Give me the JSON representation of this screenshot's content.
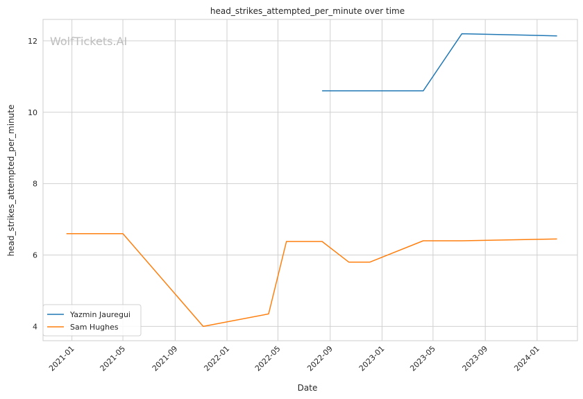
{
  "watermark": "WolfTickets.AI",
  "chart_data": {
    "type": "line",
    "title": "head_strikes_attempted_per_minute over time",
    "xlabel": "Date",
    "ylabel": "head_strikes_attempted_per_minute",
    "x_type": "date",
    "xlim": [
      "2020-10-25",
      "2024-04-05"
    ],
    "ylim": [
      3.6,
      12.6
    ],
    "x_ticks": [
      "2021-01",
      "2021-05",
      "2021-09",
      "2022-01",
      "2022-05",
      "2022-09",
      "2023-01",
      "2023-05",
      "2023-09",
      "2024-01"
    ],
    "y_ticks": [
      4,
      6,
      8,
      10,
      12
    ],
    "grid": true,
    "legend_position": "bottom-left",
    "series": [
      {
        "name": "Yazmin Jauregui",
        "color": "#1f77b4",
        "points": [
          {
            "x": "2022-08-13",
            "y": 10.6
          },
          {
            "x": "2023-04-08",
            "y": 10.6
          },
          {
            "x": "2023-07-08",
            "y": 12.2
          },
          {
            "x": "2024-02-17",
            "y": 12.14
          }
        ]
      },
      {
        "name": "Sam Hughes",
        "color": "#ff7f0e",
        "points": [
          {
            "x": "2020-12-19",
            "y": 6.6
          },
          {
            "x": "2021-05-01",
            "y": 6.6
          },
          {
            "x": "2021-11-06",
            "y": 4.0
          },
          {
            "x": "2022-04-09",
            "y": 4.35
          },
          {
            "x": "2022-05-21",
            "y": 6.38
          },
          {
            "x": "2022-08-13",
            "y": 6.38
          },
          {
            "x": "2022-10-15",
            "y": 5.8
          },
          {
            "x": "2022-12-03",
            "y": 5.8
          },
          {
            "x": "2023-04-08",
            "y": 6.4
          },
          {
            "x": "2023-07-08",
            "y": 6.4
          },
          {
            "x": "2024-02-17",
            "y": 6.45
          }
        ]
      }
    ]
  }
}
